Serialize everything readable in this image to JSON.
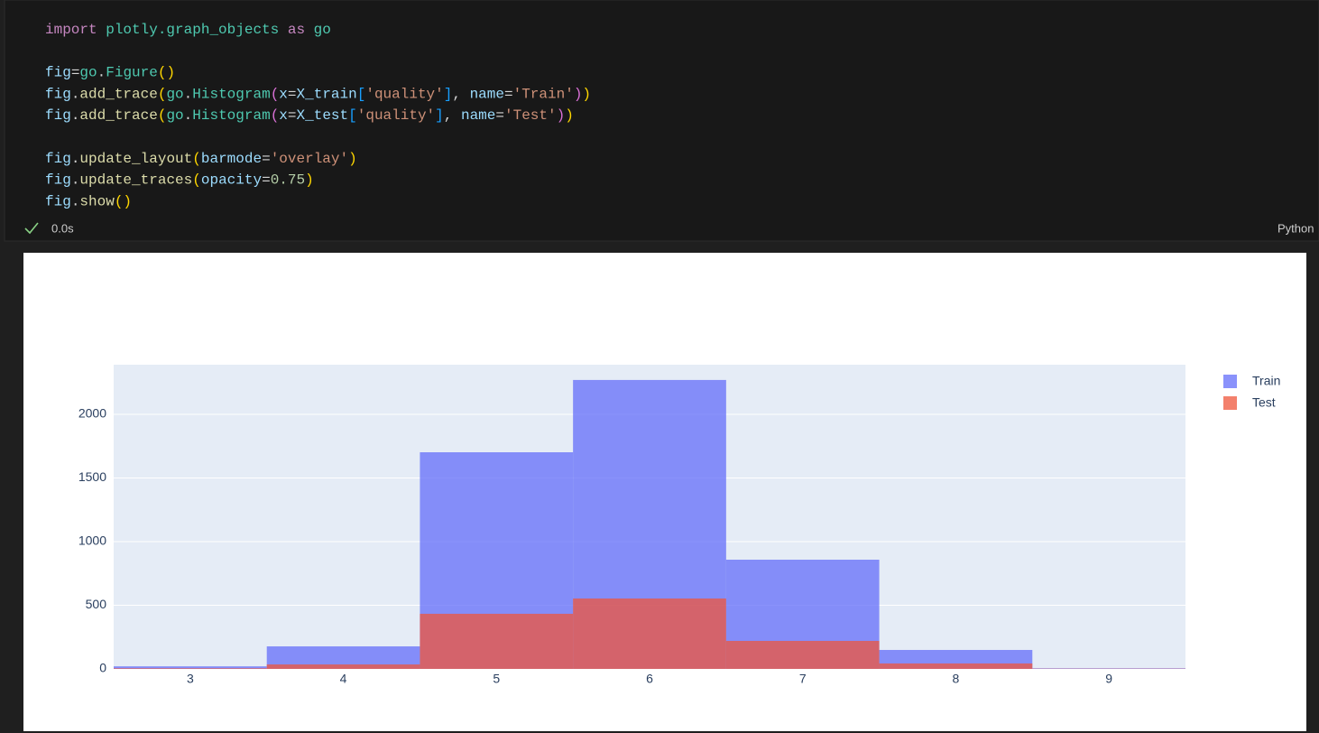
{
  "code": {
    "lines": [
      [
        [
          "import",
          "#c586c0"
        ],
        [
          " ",
          "#d4d4d4"
        ],
        [
          "plotly.graph_objects",
          "#4ec9b0"
        ],
        [
          " ",
          "#d4d4d4"
        ],
        [
          "as",
          "#c586c0"
        ],
        [
          " ",
          "#d4d4d4"
        ],
        [
          "go",
          "#4ec9b0"
        ]
      ],
      [],
      [
        [
          "fig",
          "#9cdcfe"
        ],
        [
          "=",
          "#d4d4d4"
        ],
        [
          "go",
          "#4ec9b0"
        ],
        [
          ".",
          "#d4d4d4"
        ],
        [
          "Figure",
          "#4ec9b0"
        ],
        [
          "()",
          "#ffd700"
        ]
      ],
      [
        [
          "fig",
          "#9cdcfe"
        ],
        [
          ".",
          "#d4d4d4"
        ],
        [
          "add_trace",
          "#dcdcaa"
        ],
        [
          "(",
          "#ffd700"
        ],
        [
          "go",
          "#4ec9b0"
        ],
        [
          ".",
          "#d4d4d4"
        ],
        [
          "Histogram",
          "#4ec9b0"
        ],
        [
          "(",
          "#da70d6"
        ],
        [
          "x",
          "#9cdcfe"
        ],
        [
          "=",
          "#d4d4d4"
        ],
        [
          "X_train",
          "#9cdcfe"
        ],
        [
          "[",
          "#179fff"
        ],
        [
          "'quality'",
          "#ce9178"
        ],
        [
          "]",
          "#179fff"
        ],
        [
          ", ",
          "#d4d4d4"
        ],
        [
          "name",
          "#9cdcfe"
        ],
        [
          "=",
          "#d4d4d4"
        ],
        [
          "'Train'",
          "#ce9178"
        ],
        [
          ")",
          "#da70d6"
        ],
        [
          ")",
          "#ffd700"
        ]
      ],
      [
        [
          "fig",
          "#9cdcfe"
        ],
        [
          ".",
          "#d4d4d4"
        ],
        [
          "add_trace",
          "#dcdcaa"
        ],
        [
          "(",
          "#ffd700"
        ],
        [
          "go",
          "#4ec9b0"
        ],
        [
          ".",
          "#d4d4d4"
        ],
        [
          "Histogram",
          "#4ec9b0"
        ],
        [
          "(",
          "#da70d6"
        ],
        [
          "x",
          "#9cdcfe"
        ],
        [
          "=",
          "#d4d4d4"
        ],
        [
          "X_test",
          "#9cdcfe"
        ],
        [
          "[",
          "#179fff"
        ],
        [
          "'quality'",
          "#ce9178"
        ],
        [
          "]",
          "#179fff"
        ],
        [
          ", ",
          "#d4d4d4"
        ],
        [
          "name",
          "#9cdcfe"
        ],
        [
          "=",
          "#d4d4d4"
        ],
        [
          "'Test'",
          "#ce9178"
        ],
        [
          ")",
          "#da70d6"
        ],
        [
          ")",
          "#ffd700"
        ]
      ],
      [],
      [
        [
          "fig",
          "#9cdcfe"
        ],
        [
          ".",
          "#d4d4d4"
        ],
        [
          "update_layout",
          "#dcdcaa"
        ],
        [
          "(",
          "#ffd700"
        ],
        [
          "barmode",
          "#9cdcfe"
        ],
        [
          "=",
          "#d4d4d4"
        ],
        [
          "'overlay'",
          "#ce9178"
        ],
        [
          ")",
          "#ffd700"
        ]
      ],
      [
        [
          "fig",
          "#9cdcfe"
        ],
        [
          ".",
          "#d4d4d4"
        ],
        [
          "update_traces",
          "#dcdcaa"
        ],
        [
          "(",
          "#ffd700"
        ],
        [
          "opacity",
          "#9cdcfe"
        ],
        [
          "=",
          "#d4d4d4"
        ],
        [
          "0.75",
          "#b5cea8"
        ],
        [
          ")",
          "#ffd700"
        ]
      ],
      [
        [
          "fig",
          "#9cdcfe"
        ],
        [
          ".",
          "#d4d4d4"
        ],
        [
          "show",
          "#dcdcaa"
        ],
        [
          "()",
          "#ffd700"
        ]
      ]
    ]
  },
  "status": {
    "time": "0.0s",
    "language": "Python"
  },
  "chart_data": {
    "type": "histogram",
    "bins": [
      2.5,
      3.5,
      4.5,
      5.5,
      6.5,
      7.5,
      8.5,
      9.5
    ],
    "series": [
      {
        "name": "Train",
        "color": "#636efa",
        "values": [
          20,
          177,
          1702,
          2270,
          858,
          149,
          5
        ]
      },
      {
        "name": "Test",
        "color": "#ef553b",
        "values": [
          5,
          35,
          433,
          553,
          220,
          43,
          2
        ]
      }
    ],
    "opacity": 0.75,
    "xlim": [
      2.5,
      9.5
    ],
    "xticks": [
      3,
      4,
      5,
      6,
      7,
      8,
      9
    ],
    "ylim": [
      0,
      2390
    ],
    "yticks": [
      0,
      500,
      1000,
      1500,
      2000
    ],
    "grid": true,
    "legend": "top-right"
  }
}
